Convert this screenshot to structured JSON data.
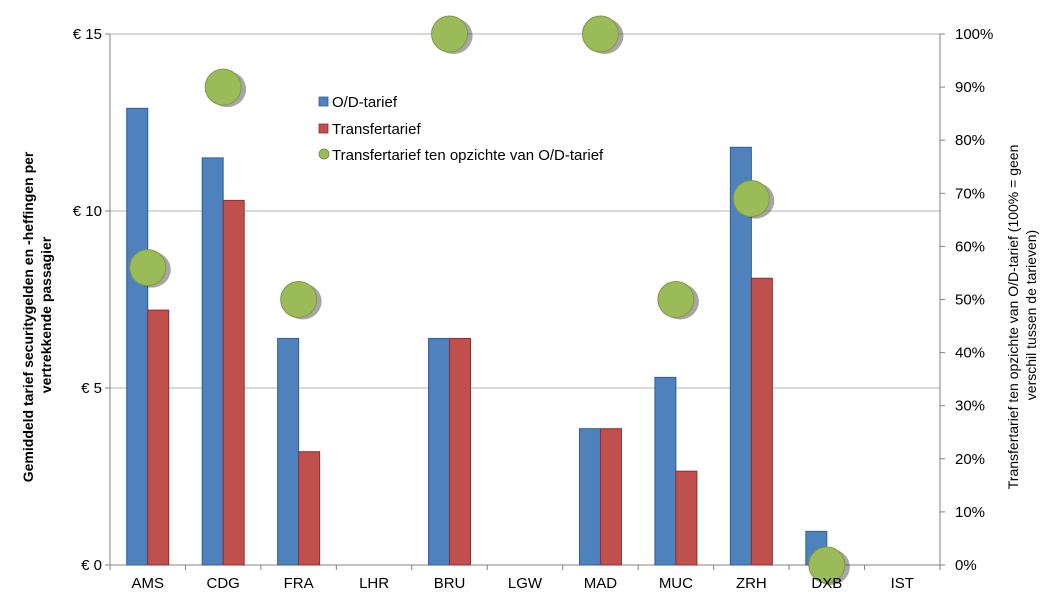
{
  "chart_data": {
    "type": "bar",
    "categories": [
      "AMS",
      "CDG",
      "FRA",
      "LHR",
      "BRU",
      "LGW",
      "MAD",
      "MUC",
      "ZRH",
      "DXB",
      "IST"
    ],
    "series": [
      {
        "name": "O/D-tarief",
        "axis": "left",
        "kind": "bar",
        "color": "#4f81bd",
        "values": [
          12.9,
          11.5,
          6.4,
          null,
          6.4,
          null,
          3.85,
          5.3,
          11.8,
          0.95,
          null
        ]
      },
      {
        "name": "Transfertarief",
        "axis": "left",
        "kind": "bar",
        "color": "#c0504d",
        "values": [
          7.2,
          10.3,
          3.2,
          null,
          6.4,
          null,
          3.85,
          2.65,
          8.1,
          null,
          null
        ]
      },
      {
        "name": "Transfertarief ten opzichte van O/D-tarief",
        "axis": "right",
        "kind": "marker",
        "color": "#9bbb59",
        "values": [
          56,
          90,
          50,
          null,
          100,
          null,
          100,
          50,
          69,
          0,
          null
        ]
      }
    ],
    "y_left": {
      "label_lines": [
        "Gemiddeld tarief securitygelden en -heffingen per",
        "vertrekkende passagier"
      ],
      "ylim": [
        0,
        15
      ],
      "ticks": [
        0,
        5,
        10,
        15
      ],
      "tick_labels": [
        "€ 0",
        "€ 5",
        "€ 10",
        "€ 15"
      ]
    },
    "y_right": {
      "label_lines": [
        "Transfertarief ten opzichte van O/D-tarief (100% = geen",
        "verschil tussen de tarieven)"
      ],
      "ylim": [
        0,
        100
      ],
      "ticks": [
        0,
        10,
        20,
        30,
        40,
        50,
        60,
        70,
        80,
        90,
        100
      ],
      "tick_labels": [
        "0%",
        "10%",
        "20%",
        "30%",
        "40%",
        "50%",
        "60%",
        "70%",
        "80%",
        "90%",
        "100%"
      ]
    },
    "grid": true,
    "legend_position": "top-center"
  }
}
